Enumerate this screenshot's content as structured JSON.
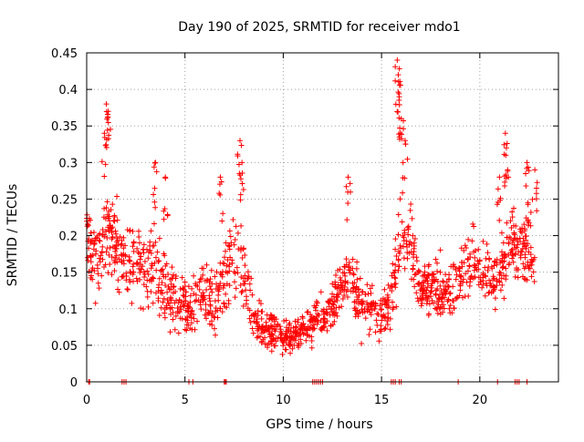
{
  "chart_data": {
    "type": "scatter",
    "title": "Day 190 of 2025, SRMTID for receiver mdo1",
    "xlabel": "GPS time / hours",
    "ylabel": "SRMTID / TECUs",
    "xlim": [
      0,
      24
    ],
    "ylim": [
      0,
      0.45
    ],
    "grid": true,
    "marker": "+",
    "color": "#ff0000",
    "x_ticks": [
      {
        "value": 0,
        "label": "0"
      },
      {
        "value": 5,
        "label": "5"
      },
      {
        "value": 10,
        "label": "10"
      },
      {
        "value": 15,
        "label": "15"
      },
      {
        "value": 20,
        "label": "20"
      }
    ],
    "y_ticks": [
      {
        "value": 0,
        "label": "0"
      },
      {
        "value": 0.05,
        "label": "0.05"
      },
      {
        "value": 0.1,
        "label": "0.1"
      },
      {
        "value": 0.15,
        "label": "0.15"
      },
      {
        "value": 0.2,
        "label": "0.2"
      },
      {
        "value": 0.25,
        "label": "0.25"
      },
      {
        "value": 0.3,
        "label": "0.3"
      },
      {
        "value": 0.35,
        "label": "0.35"
      },
      {
        "value": 0.4,
        "label": "0.4"
      },
      {
        "value": 0.45,
        "label": "0.45"
      }
    ],
    "profile_description": "Approximate trend of the scatter (hour, typical SRMTID, spread)",
    "trend": [
      [
        0.0,
        0.2,
        0.05
      ],
      [
        0.5,
        0.17,
        0.05
      ],
      [
        1.0,
        0.22,
        0.07
      ],
      [
        1.5,
        0.19,
        0.05
      ],
      [
        2.0,
        0.16,
        0.05
      ],
      [
        2.5,
        0.18,
        0.06
      ],
      [
        3.0,
        0.15,
        0.05
      ],
      [
        3.5,
        0.16,
        0.06
      ],
      [
        4.0,
        0.13,
        0.04
      ],
      [
        4.5,
        0.11,
        0.04
      ],
      [
        5.0,
        0.1,
        0.04
      ],
      [
        5.5,
        0.11,
        0.04
      ],
      [
        6.0,
        0.12,
        0.04
      ],
      [
        6.5,
        0.1,
        0.04
      ],
      [
        7.0,
        0.14,
        0.05
      ],
      [
        7.5,
        0.17,
        0.06
      ],
      [
        8.0,
        0.15,
        0.06
      ],
      [
        8.5,
        0.09,
        0.03
      ],
      [
        9.0,
        0.07,
        0.03
      ],
      [
        9.5,
        0.07,
        0.025
      ],
      [
        10.0,
        0.06,
        0.02
      ],
      [
        10.5,
        0.065,
        0.02
      ],
      [
        11.0,
        0.07,
        0.025
      ],
      [
        11.5,
        0.08,
        0.025
      ],
      [
        12.0,
        0.09,
        0.03
      ],
      [
        12.5,
        0.1,
        0.03
      ],
      [
        13.0,
        0.14,
        0.04
      ],
      [
        13.5,
        0.13,
        0.04
      ],
      [
        14.0,
        0.11,
        0.04
      ],
      [
        14.5,
        0.1,
        0.035
      ],
      [
        15.0,
        0.09,
        0.035
      ],
      [
        15.5,
        0.12,
        0.04
      ],
      [
        16.0,
        0.2,
        0.06
      ],
      [
        16.5,
        0.19,
        0.05
      ],
      [
        17.0,
        0.12,
        0.035
      ],
      [
        17.5,
        0.14,
        0.04
      ],
      [
        18.0,
        0.13,
        0.04
      ],
      [
        18.5,
        0.12,
        0.04
      ],
      [
        19.0,
        0.14,
        0.04
      ],
      [
        19.5,
        0.16,
        0.04
      ],
      [
        20.0,
        0.17,
        0.04
      ],
      [
        20.5,
        0.14,
        0.04
      ],
      [
        21.0,
        0.15,
        0.05
      ],
      [
        21.5,
        0.18,
        0.05
      ],
      [
        22.0,
        0.19,
        0.05
      ],
      [
        22.5,
        0.18,
        0.05
      ],
      [
        22.8,
        0.17,
        0.05
      ]
    ],
    "spikes": [
      {
        "x": 1.0,
        "y": 0.38
      },
      {
        "x": 1.1,
        "y": 0.37
      },
      {
        "x": 0.9,
        "y": 0.34
      },
      {
        "x": 3.5,
        "y": 0.3
      },
      {
        "x": 4.0,
        "y": 0.28
      },
      {
        "x": 6.8,
        "y": 0.28
      },
      {
        "x": 7.8,
        "y": 0.33
      },
      {
        "x": 7.9,
        "y": 0.3
      },
      {
        "x": 13.3,
        "y": 0.28
      },
      {
        "x": 15.8,
        "y": 0.44
      },
      {
        "x": 15.85,
        "y": 0.42
      },
      {
        "x": 15.9,
        "y": 0.39
      },
      {
        "x": 16.0,
        "y": 0.36
      },
      {
        "x": 16.2,
        "y": 0.33
      },
      {
        "x": 21.3,
        "y": 0.34
      },
      {
        "x": 21.35,
        "y": 0.32
      },
      {
        "x": 21.0,
        "y": 0.28
      },
      {
        "x": 22.4,
        "y": 0.3
      },
      {
        "x": 22.8,
        "y": 0.29
      }
    ],
    "zero_points_x": [
      0.1,
      0.15,
      1.8,
      1.9,
      2.0,
      5.2,
      5.4,
      7.0,
      7.05,
      7.1,
      11.5,
      11.6,
      11.7,
      11.8,
      11.9,
      12.0,
      15.5,
      15.6,
      15.7,
      15.9,
      16.0,
      18.9,
      20.9,
      21.8,
      21.9,
      22.0,
      22.4
    ]
  }
}
